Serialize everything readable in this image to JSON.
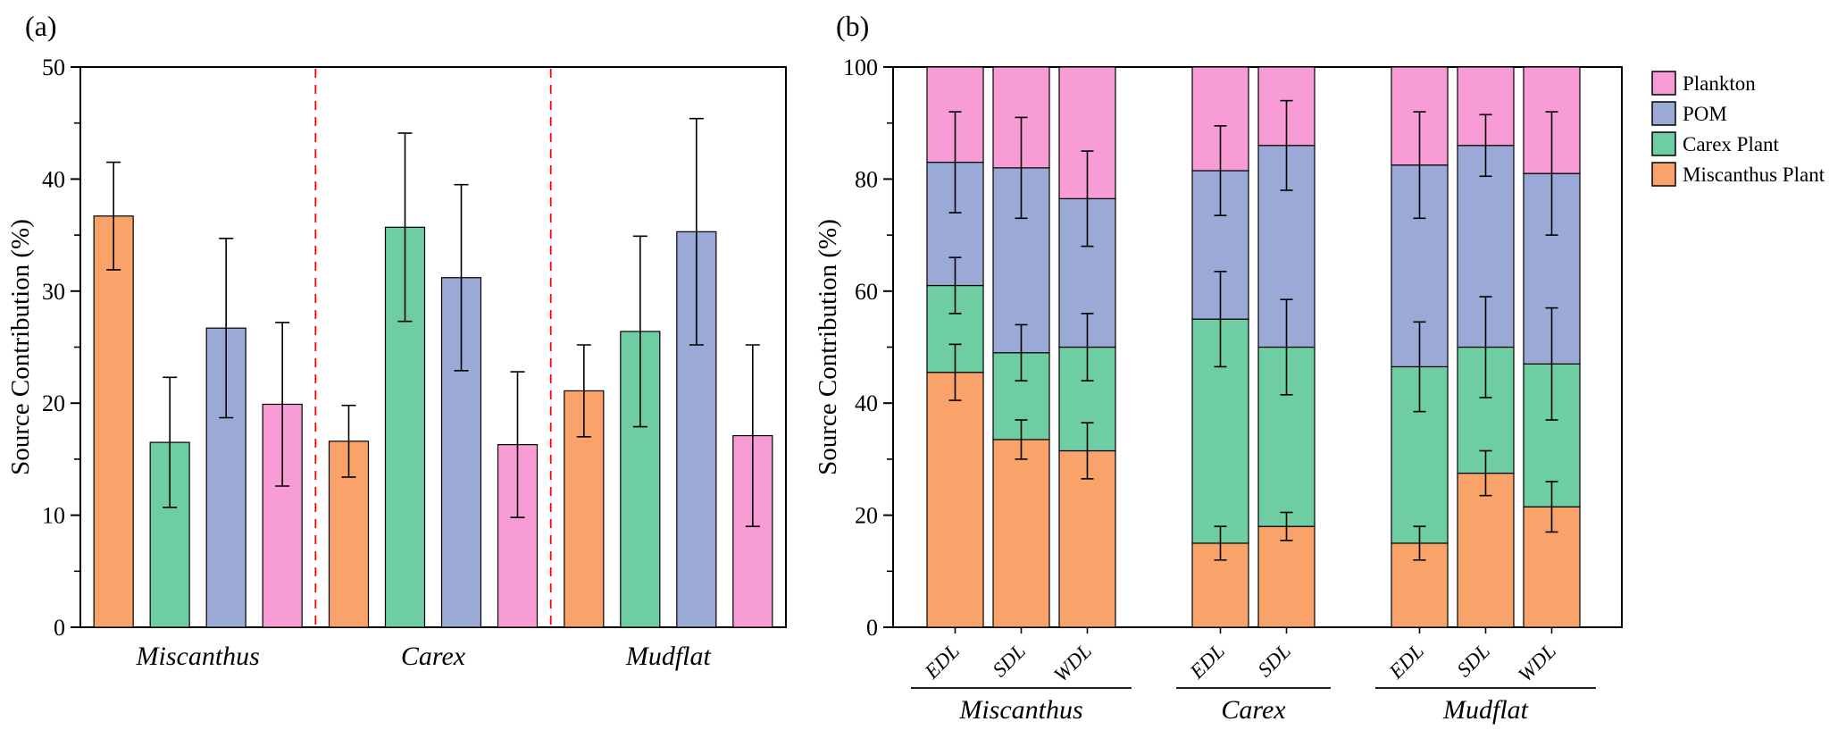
{
  "panels": {
    "a": "(a)",
    "b": "(b)"
  },
  "chart_data": [
    {
      "id": "a",
      "type": "bar",
      "title": "",
      "xlabel": "",
      "ylabel": "Source Contribution (%)",
      "ylim": [
        0,
        50
      ],
      "yticks": [
        0,
        10,
        20,
        30,
        40,
        50
      ],
      "minor_tick_step": 5,
      "grid": false,
      "categories": [
        "Miscanthus",
        "Carex",
        "Mudflat"
      ],
      "group_separators": {
        "style": "dashed",
        "color": "#FF0000"
      },
      "series": [
        {
          "name": "Miscanthus Plant",
          "color": "#F9A36A",
          "values": [
            36.7,
            16.6,
            21.1
          ],
          "errors": [
            4.8,
            3.2,
            4.1
          ]
        },
        {
          "name": "Carex Plant",
          "color": "#6FCDA4",
          "values": [
            16.5,
            35.7,
            26.4
          ],
          "errors": [
            5.8,
            8.4,
            8.5
          ]
        },
        {
          "name": "POM",
          "color": "#9AA9D6",
          "values": [
            26.7,
            31.2,
            35.3
          ],
          "errors": [
            8.0,
            8.3,
            10.1
          ]
        },
        {
          "name": "Plankton",
          "color": "#F79CD4",
          "values": [
            19.9,
            16.3,
            17.1
          ],
          "errors": [
            7.3,
            6.5,
            8.1
          ]
        }
      ]
    },
    {
      "id": "b",
      "type": "stacked-bar",
      "title": "",
      "xlabel": "",
      "ylabel": "Source Contribution (%)",
      "ylim": [
        0,
        100
      ],
      "yticks": [
        0,
        20,
        40,
        60,
        80,
        100
      ],
      "minor_tick_step": 10,
      "grid": false,
      "bar_labels": [
        "EDL",
        "SDL",
        "WDL",
        "EDL",
        "SDL",
        "EDL",
        "SDL",
        "WDL"
      ],
      "groups": [
        {
          "name": "Miscanthus",
          "bar_count": 3
        },
        {
          "name": "Carex",
          "bar_count": 2
        },
        {
          "name": "Mudflat",
          "bar_count": 3
        }
      ],
      "series": [
        {
          "name": "Miscanthus Plant",
          "color": "#F9A36A",
          "values": [
            45.5,
            33.5,
            31.5,
            15.0,
            18.0,
            15.0,
            27.5,
            21.5
          ],
          "errors": [
            5.0,
            3.5,
            5.0,
            3.0,
            2.5,
            3.0,
            4.0,
            4.5
          ]
        },
        {
          "name": "Carex Plant",
          "color": "#6FCDA4",
          "values": [
            15.5,
            15.5,
            18.5,
            40.0,
            32.0,
            31.5,
            22.5,
            25.5
          ],
          "errors": [
            5.0,
            5.0,
            6.0,
            8.5,
            8.5,
            8.0,
            9.0,
            10.0
          ]
        },
        {
          "name": "POM",
          "color": "#9AA9D6",
          "values": [
            22.0,
            33.0,
            26.5,
            26.5,
            36.0,
            36.0,
            36.0,
            34.0
          ],
          "errors": [
            9.0,
            9.0,
            8.5,
            8.0,
            8.0,
            9.5,
            5.5,
            11.0
          ]
        },
        {
          "name": "Plankton",
          "color": "#F79CD4",
          "values": [
            17.0,
            18.0,
            23.5,
            18.5,
            14.0,
            17.5,
            14.0,
            19.0
          ],
          "errors": null
        }
      ],
      "legend": {
        "position": "right",
        "items": [
          {
            "label": "Plankton",
            "color": "#F79CD4"
          },
          {
            "label": "POM",
            "color": "#9AA9D6"
          },
          {
            "label": "Carex Plant",
            "color": "#6FCDA4"
          },
          {
            "label": "Miscanthus Plant",
            "color": "#F9A36A"
          }
        ]
      }
    }
  ]
}
